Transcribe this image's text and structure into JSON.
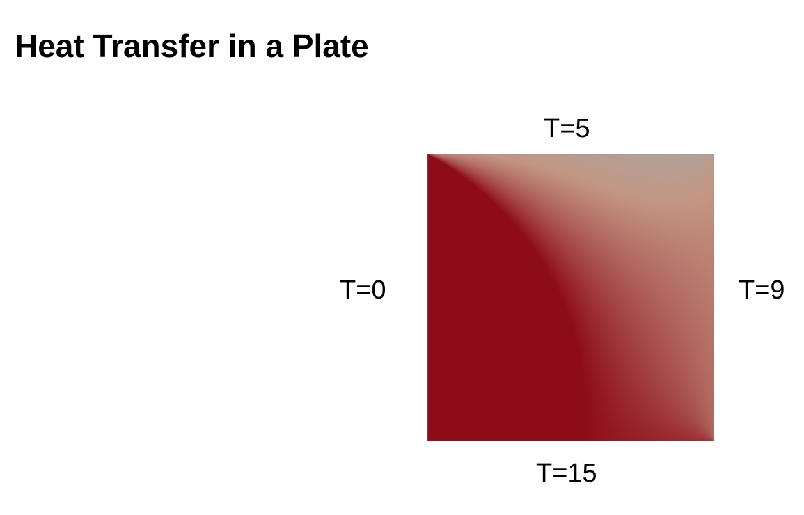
{
  "title": "Heat Transfer in a Plate",
  "boundaries": {
    "top": "T=5",
    "left": "T=0",
    "right": "T=9",
    "bottom": "T=15"
  },
  "colormap": {
    "cold": "#2b3a96",
    "cool": "#6f89bf",
    "mid": "#a7a7a4",
    "warm": "#c39683",
    "hot": "#8e0b1a"
  }
}
